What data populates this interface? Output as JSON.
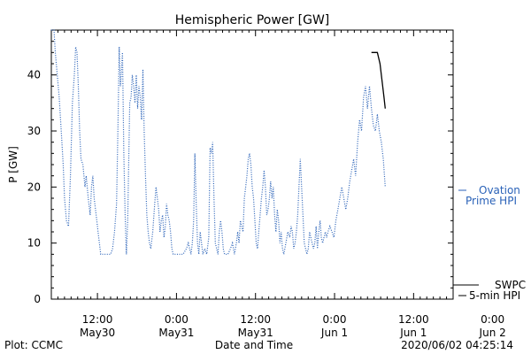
{
  "chart_data": {
    "type": "line",
    "title": "Hemispheric Power [GW]",
    "ylabel": "P [GW]",
    "xlabel": "Date and Time",
    "ylim": [
      0,
      48
    ],
    "yticks": [
      0,
      10,
      20,
      30,
      40
    ],
    "xlim": [
      0,
      61
    ],
    "xticks": [
      {
        "x": 7,
        "time": "12:00",
        "date": "May30"
      },
      {
        "x": 19,
        "time": "0:00",
        "date": "May31"
      },
      {
        "x": 31,
        "time": "12:00",
        "date": "May31"
      },
      {
        "x": 43,
        "time": "0:00",
        "date": "Jun 1"
      },
      {
        "x": 55,
        "time": "12:00",
        "date": "Jun 1"
      },
      {
        "x": 67,
        "time": "0:00",
        "date": "Jun 2"
      }
    ],
    "series": [
      {
        "name": "Ovation Prime HPI",
        "style": "dotted",
        "color": "#2a62b8",
        "points": [
          [
            0,
            48
          ],
          [
            0.4,
            48
          ],
          [
            0.6,
            44
          ],
          [
            0.9,
            40
          ],
          [
            1.2,
            36
          ],
          [
            1.5,
            30
          ],
          [
            1.8,
            24
          ],
          [
            2.0,
            18
          ],
          [
            2.3,
            14
          ],
          [
            2.6,
            13
          ],
          [
            2.9,
            22
          ],
          [
            3.2,
            35
          ],
          [
            3.5,
            40
          ],
          [
            3.7,
            45
          ],
          [
            3.9,
            44
          ],
          [
            4.1,
            38
          ],
          [
            4.3,
            30
          ],
          [
            4.5,
            25
          ],
          [
            4.8,
            24
          ],
          [
            5.1,
            20
          ],
          [
            5.3,
            22
          ],
          [
            5.6,
            18
          ],
          [
            5.9,
            15
          ],
          [
            6.1,
            20
          ],
          [
            6.3,
            22
          ],
          [
            6.5,
            18
          ],
          [
            6.7,
            16
          ],
          [
            6.9,
            14
          ],
          [
            7.1,
            12
          ],
          [
            7.3,
            10
          ],
          [
            7.5,
            8
          ],
          [
            8.0,
            8
          ],
          [
            9.0,
            8
          ],
          [
            9.3,
            9
          ],
          [
            9.6,
            12
          ],
          [
            9.9,
            17
          ],
          [
            10.1,
            30
          ],
          [
            10.3,
            45
          ],
          [
            10.5,
            38
          ],
          [
            10.8,
            44
          ],
          [
            11.0,
            26
          ],
          [
            11.2,
            15
          ],
          [
            11.4,
            8
          ],
          [
            11.6,
            14
          ],
          [
            11.9,
            35
          ],
          [
            12.1,
            36
          ],
          [
            12.3,
            40
          ],
          [
            12.5,
            38
          ],
          [
            12.7,
            35
          ],
          [
            12.9,
            40
          ],
          [
            13.1,
            34
          ],
          [
            13.3,
            38
          ],
          [
            13.5,
            36
          ],
          [
            13.7,
            32
          ],
          [
            13.9,
            41
          ],
          [
            14.1,
            30
          ],
          [
            14.3,
            22
          ],
          [
            14.5,
            15
          ],
          [
            14.7,
            12
          ],
          [
            14.9,
            10
          ],
          [
            15.1,
            9
          ],
          [
            15.4,
            12
          ],
          [
            15.7,
            17
          ],
          [
            15.9,
            20
          ],
          [
            16.1,
            18
          ],
          [
            16.3,
            16
          ],
          [
            16.5,
            12
          ],
          [
            16.7,
            14
          ],
          [
            16.9,
            15
          ],
          [
            17.1,
            11
          ],
          [
            17.3,
            13
          ],
          [
            17.5,
            17
          ],
          [
            17.7,
            15
          ],
          [
            17.9,
            14
          ],
          [
            18.1,
            12
          ],
          [
            18.3,
            9
          ],
          [
            18.5,
            8
          ],
          [
            19.0,
            8
          ],
          [
            19.5,
            8
          ],
          [
            20.0,
            8
          ],
          [
            20.5,
            9
          ],
          [
            20.8,
            10
          ],
          [
            21.0,
            9
          ],
          [
            21.2,
            8
          ],
          [
            21.4,
            10
          ],
          [
            21.6,
            14
          ],
          [
            21.8,
            26
          ],
          [
            22.0,
            17
          ],
          [
            22.2,
            10
          ],
          [
            22.4,
            8
          ],
          [
            22.6,
            12
          ],
          [
            22.8,
            10
          ],
          [
            23.0,
            8
          ],
          [
            23.3,
            9
          ],
          [
            23.6,
            8
          ],
          [
            23.9,
            11
          ],
          [
            24.1,
            27
          ],
          [
            24.3,
            26
          ],
          [
            24.5,
            28
          ],
          [
            24.7,
            18
          ],
          [
            24.9,
            10
          ],
          [
            25.1,
            9
          ],
          [
            25.3,
            8
          ],
          [
            25.5,
            12
          ],
          [
            25.7,
            14
          ],
          [
            25.9,
            12
          ],
          [
            26.1,
            9
          ],
          [
            26.3,
            8
          ],
          [
            26.8,
            8
          ],
          [
            27.2,
            9
          ],
          [
            27.5,
            10
          ],
          [
            27.8,
            8
          ],
          [
            28.1,
            10
          ],
          [
            28.3,
            12
          ],
          [
            28.5,
            10
          ],
          [
            28.7,
            14
          ],
          [
            28.9,
            13
          ],
          [
            29.1,
            12
          ],
          [
            29.3,
            18
          ],
          [
            29.5,
            20
          ],
          [
            29.7,
            22
          ],
          [
            29.9,
            25
          ],
          [
            30.1,
            26
          ],
          [
            30.3,
            24
          ],
          [
            30.5,
            20
          ],
          [
            30.7,
            18
          ],
          [
            30.9,
            14
          ],
          [
            31.1,
            10
          ],
          [
            31.3,
            9
          ],
          [
            31.5,
            12
          ],
          [
            31.7,
            15
          ],
          [
            31.9,
            18
          ],
          [
            32.1,
            20
          ],
          [
            32.3,
            23
          ],
          [
            32.5,
            20
          ],
          [
            32.7,
            15
          ],
          [
            32.9,
            16
          ],
          [
            33.1,
            18
          ],
          [
            33.3,
            21
          ],
          [
            33.5,
            18
          ],
          [
            33.7,
            20
          ],
          [
            33.9,
            15
          ],
          [
            34.1,
            12
          ],
          [
            34.3,
            16
          ],
          [
            34.5,
            14
          ],
          [
            34.7,
            10
          ],
          [
            34.9,
            12
          ],
          [
            35.1,
            9
          ],
          [
            35.3,
            8
          ],
          [
            35.6,
            10
          ],
          [
            35.9,
            12
          ],
          [
            36.2,
            11
          ],
          [
            36.4,
            13
          ],
          [
            36.6,
            12
          ],
          [
            36.8,
            9
          ],
          [
            37.0,
            10
          ],
          [
            37.2,
            12
          ],
          [
            37.4,
            15
          ],
          [
            37.6,
            20
          ],
          [
            37.8,
            25
          ],
          [
            38.0,
            20
          ],
          [
            38.2,
            15
          ],
          [
            38.4,
            10
          ],
          [
            38.6,
            9
          ],
          [
            38.8,
            8
          ],
          [
            39.0,
            9
          ],
          [
            39.2,
            12
          ],
          [
            39.4,
            11
          ],
          [
            39.6,
            10
          ],
          [
            39.8,
            9
          ],
          [
            40.0,
            10
          ],
          [
            40.2,
            13
          ],
          [
            40.4,
            9
          ],
          [
            40.6,
            12
          ],
          [
            40.8,
            14
          ],
          [
            41.0,
            11
          ],
          [
            41.2,
            10
          ],
          [
            41.4,
            11
          ],
          [
            41.6,
            12
          ],
          [
            41.8,
            11
          ],
          [
            42.0,
            12
          ],
          [
            42.3,
            13
          ],
          [
            42.6,
            12
          ],
          [
            42.9,
            11
          ],
          [
            43.2,
            14
          ],
          [
            43.5,
            16
          ],
          [
            43.8,
            18
          ],
          [
            44.1,
            20
          ],
          [
            44.4,
            18
          ],
          [
            44.7,
            16
          ],
          [
            45.0,
            18
          ],
          [
            45.3,
            21
          ],
          [
            45.6,
            23
          ],
          [
            45.9,
            25
          ],
          [
            46.2,
            22
          ],
          [
            46.5,
            28
          ],
          [
            46.8,
            32
          ],
          [
            47.1,
            30
          ],
          [
            47.4,
            36
          ],
          [
            47.7,
            38
          ],
          [
            48.0,
            34
          ],
          [
            48.3,
            38
          ],
          [
            48.6,
            34
          ],
          [
            48.9,
            31
          ],
          [
            49.2,
            30
          ],
          [
            49.5,
            33
          ],
          [
            49.8,
            30
          ],
          [
            50.1,
            28
          ],
          [
            50.4,
            25
          ],
          [
            50.7,
            20
          ]
        ]
      },
      {
        "name": "SWPC 5-min HPI",
        "style": "solid",
        "color": "#000000",
        "points": [
          [
            48.6,
            44
          ],
          [
            48.9,
            44
          ],
          [
            49.2,
            44
          ],
          [
            49.5,
            44
          ],
          [
            49.7,
            43
          ],
          [
            49.9,
            42
          ],
          [
            50.1,
            40
          ],
          [
            50.3,
            38
          ],
          [
            50.5,
            36
          ],
          [
            50.7,
            34
          ]
        ]
      }
    ],
    "legend": {
      "position": "right",
      "entries": [
        {
          "line1": "Ovation",
          "line2": "Prime HPI",
          "color": "#2a62b8"
        },
        {
          "line1": "SWPC",
          "line2": "5-min HPI",
          "color": "#000000"
        }
      ]
    }
  },
  "footer": {
    "left": "Plot: CCMC",
    "center": "Date and Time",
    "right": "2020/06/02 04:25:14"
  }
}
